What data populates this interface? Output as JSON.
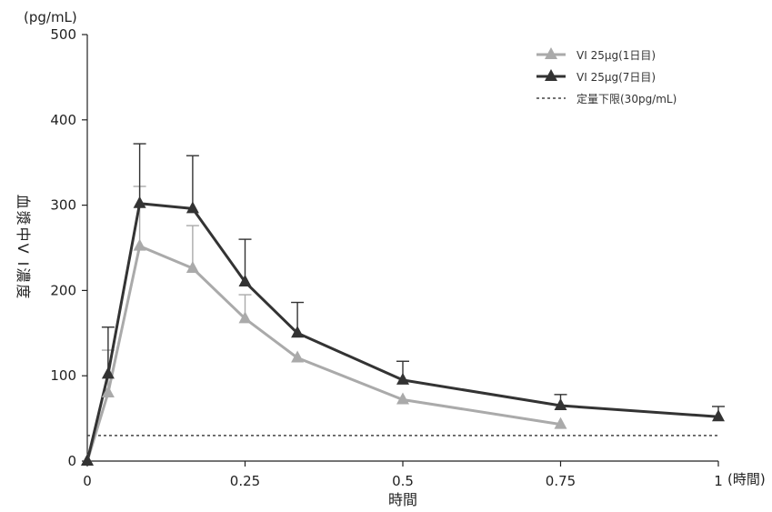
{
  "chart_data": {
    "type": "line",
    "y_unit": "(pg/mL)",
    "ylabel": "血漿中V I濃度",
    "xlabel": "時間",
    "x_unit": "(時間)",
    "xlim": [
      0,
      1
    ],
    "ylim": [
      0,
      500
    ],
    "x_ticks": [
      0,
      0.25,
      0.5,
      0.75,
      1
    ],
    "x_tick_labels": [
      "0",
      "0.25",
      "0.5",
      "0.75",
      "1"
    ],
    "y_ticks": [
      0,
      100,
      200,
      300,
      400,
      500
    ],
    "y_tick_labels": [
      "0",
      "100",
      "200",
      "300",
      "400",
      "500"
    ],
    "grid": false,
    "legend_position": "top-right",
    "series": [
      {
        "name": "VI 25μg(1日目)",
        "color": "#aaaaaa",
        "marker": "triangle",
        "x": [
          0,
          0.033,
          0.083,
          0.167,
          0.25,
          0.333,
          0.5,
          0.75
        ],
        "y": [
          0,
          80,
          252,
          226,
          167,
          121,
          72,
          43
        ],
        "error": [
          0,
          50,
          70,
          50,
          28,
          0,
          0,
          0
        ]
      },
      {
        "name": "VI 25μg(7日目)",
        "color": "#333333",
        "marker": "triangle",
        "x": [
          0,
          0.033,
          0.083,
          0.167,
          0.25,
          0.333,
          0.5,
          0.75,
          1
        ],
        "y": [
          0,
          102,
          302,
          296,
          210,
          150,
          95,
          65,
          52
        ],
        "error": [
          0,
          55,
          70,
          62,
          50,
          36,
          22,
          13,
          12
        ]
      }
    ],
    "reference_line": {
      "name": "定量下限(30pg/mL)",
      "value": 30,
      "color": "#444444",
      "style": "dotted"
    }
  }
}
